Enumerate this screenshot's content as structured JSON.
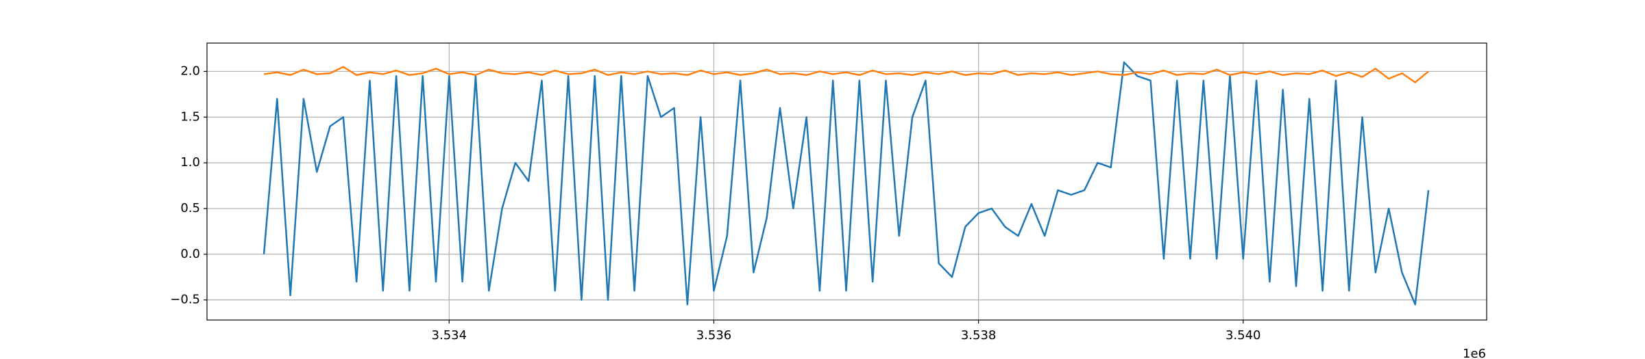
{
  "chart_data": {
    "type": "line",
    "x": [
      3532600,
      3532700,
      3532800,
      3532900,
      3533000,
      3533100,
      3533200,
      3533300,
      3533400,
      3533500,
      3533600,
      3533700,
      3533800,
      3533900,
      3534000,
      3534100,
      3534200,
      3534300,
      3534400,
      3534500,
      3534600,
      3534700,
      3534800,
      3534900,
      3535000,
      3535100,
      3535200,
      3535300,
      3535400,
      3535500,
      3535600,
      3535700,
      3535800,
      3535900,
      3536000,
      3536100,
      3536200,
      3536300,
      3536400,
      3536500,
      3536600,
      3536700,
      3536800,
      3536900,
      3537000,
      3537100,
      3537200,
      3537300,
      3537400,
      3537500,
      3537600,
      3537700,
      3537800,
      3537900,
      3538000,
      3538100,
      3538200,
      3538300,
      3538400,
      3538500,
      3538600,
      3538700,
      3538800,
      3538900,
      3539000,
      3539100,
      3539200,
      3539300,
      3539400,
      3539500,
      3539600,
      3539700,
      3539800,
      3539900,
      3540000,
      3540100,
      3540200,
      3540300,
      3540400,
      3540500,
      3540600,
      3540700,
      3540800,
      3540900,
      3541000,
      3541100,
      3541200,
      3541300,
      3541400
    ],
    "series": [
      {
        "color": "#1f77b4",
        "values": [
          0.0,
          1.7,
          -0.45,
          1.7,
          0.9,
          1.4,
          1.5,
          -0.3,
          1.9,
          -0.4,
          1.95,
          -0.4,
          1.95,
          -0.3,
          1.95,
          -0.3,
          1.95,
          -0.4,
          0.5,
          1.0,
          0.8,
          1.9,
          -0.4,
          1.95,
          -0.5,
          1.95,
          -0.5,
          1.95,
          -0.4,
          1.95,
          1.5,
          1.6,
          -0.55,
          1.5,
          -0.4,
          0.2,
          1.9,
          -0.2,
          0.4,
          1.6,
          0.5,
          1.5,
          -0.4,
          1.9,
          -0.4,
          1.9,
          -0.3,
          1.9,
          0.2,
          1.5,
          1.9,
          -0.1,
          -0.25,
          0.3,
          0.45,
          0.5,
          0.3,
          0.2,
          0.55,
          0.2,
          0.7,
          0.65,
          0.7,
          1.0,
          0.95,
          2.1,
          1.95,
          1.9,
          -0.05,
          1.9,
          -0.05,
          1.9,
          -0.05,
          1.95,
          -0.05,
          1.9,
          -0.3,
          1.8,
          -0.35,
          1.7,
          -0.4,
          1.9,
          -0.4,
          1.5,
          -0.2,
          0.5,
          -0.2,
          -0.55,
          0.7
        ]
      },
      {
        "color": "#ff7f0e",
        "values": [
          1.97,
          1.99,
          1.96,
          2.02,
          1.97,
          1.98,
          2.05,
          1.96,
          1.99,
          1.97,
          2.01,
          1.96,
          1.98,
          2.03,
          1.97,
          1.99,
          1.96,
          2.02,
          1.98,
          1.97,
          1.99,
          1.96,
          2.01,
          1.97,
          1.98,
          2.02,
          1.96,
          1.99,
          1.97,
          2.0,
          1.97,
          1.98,
          1.96,
          2.01,
          1.97,
          1.99,
          1.96,
          1.98,
          2.02,
          1.97,
          1.98,
          1.96,
          2.0,
          1.97,
          1.99,
          1.96,
          2.01,
          1.97,
          1.98,
          1.96,
          1.99,
          1.97,
          2.0,
          1.96,
          1.98,
          1.97,
          2.01,
          1.96,
          1.98,
          1.97,
          1.99,
          1.96,
          1.98,
          2.0,
          1.97,
          1.96,
          1.99,
          1.97,
          2.01,
          1.96,
          1.98,
          1.97,
          2.02,
          1.96,
          1.99,
          1.97,
          2.0,
          1.96,
          1.98,
          1.97,
          2.01,
          1.95,
          1.99,
          1.94,
          2.03,
          1.92,
          1.98,
          1.88,
          2.0
        ]
      }
    ],
    "xlim": [
      3532170,
      3541840
    ],
    "ylim": [
      -0.72,
      2.31
    ],
    "xticks": [
      {
        "value": 3534000,
        "label": "3.534"
      },
      {
        "value": 3536000,
        "label": "3.536"
      },
      {
        "value": 3538000,
        "label": "3.538"
      },
      {
        "value": 3540000,
        "label": "3.540"
      }
    ],
    "yticks": [
      {
        "value": -0.5,
        "label": "−0.5"
      },
      {
        "value": 0,
        "label": "0.0"
      },
      0.5,
      {
        "value": 1,
        "label": "1.0"
      },
      1.5,
      {
        "value": 2,
        "label": "2.0"
      }
    ],
    "x_offset_label": "1e6",
    "grid": true
  }
}
